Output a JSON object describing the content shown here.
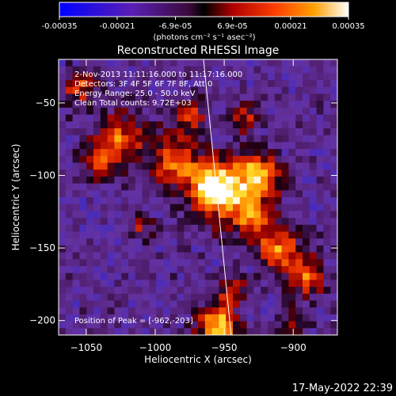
{
  "colorbar": {
    "ticks": [
      "-0.00035",
      "-0.00021",
      "-6.9e-05",
      "6.9e-05",
      "0.00021",
      "0.00035"
    ],
    "unit_label": "(photons cm⁻² s⁻¹ asec⁻²)",
    "range": [
      -0.00035,
      0.00035
    ]
  },
  "chart_data": {
    "type": "heatmap",
    "title": "Reconstructed RHESSI Image",
    "xlabel": "Heliocentric X (arcsec)",
    "ylabel": "Heliocentric Y (arcsec)",
    "xlim": [
      -1070,
      -868
    ],
    "ylim": [
      -210,
      -20
    ],
    "x_ticks": [
      -1050,
      -1000,
      -950,
      -900
    ],
    "y_ticks": [
      -50,
      -100,
      -150,
      -200
    ],
    "colormap": "ct5-blue-purple-red-orange-yellow-white",
    "limb_line": [
      [
        -965,
        -20
      ],
      [
        -945,
        -210
      ]
    ],
    "annotations": [
      "2-Nov-2013 11:11:16.000 to 11:17:16.000",
      "Detectors: 3F 4F 5F 6F 7F 8F, Att 0",
      "Energy Range: 25.0 - 50.0 keV",
      "Clean     Total counts: 9.72E+03"
    ],
    "peak_label": "Position of Peak = [-962,-203]",
    "peak": [
      -962,
      -203
    ],
    "grid": false
  },
  "footer": {
    "timestamp": "17-May-2022 22:39"
  }
}
